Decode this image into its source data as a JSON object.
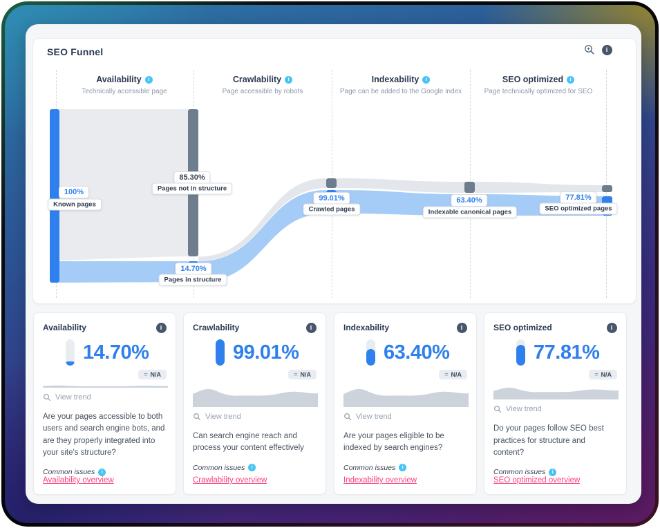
{
  "funnel": {
    "title": "SEO Funnel",
    "columns": [
      {
        "label": "Availability",
        "sublabel": "Technically accessible page"
      },
      {
        "label": "Crawlability",
        "sublabel": "Page accessible by robots"
      },
      {
        "label": "Indexability",
        "sublabel": "Page can be added to the Google index"
      },
      {
        "label": "SEO optimized",
        "sublabel": "Page technically optimized for SEO"
      }
    ],
    "nodes": [
      {
        "pct": "100%",
        "label": "Known pages"
      },
      {
        "pct": "85.30%",
        "label": "Pages not in structure"
      },
      {
        "pct": "14.70%",
        "label": "Pages in structure"
      },
      {
        "pct": "99.01%",
        "label": "Crawled pages"
      },
      {
        "pct": "63.40%",
        "label": "Indexable canonical pages"
      },
      {
        "pct": "77.81%",
        "label": "SEO optimized pages"
      }
    ]
  },
  "chart_data": {
    "type": "area",
    "title": "SEO Funnel",
    "stages": [
      "Known pages",
      "Pages in structure",
      "Crawled pages",
      "Indexable canonical pages",
      "SEO optimized pages"
    ],
    "values_pct_of_previous": [
      100,
      14.7,
      99.01,
      63.4,
      77.81
    ],
    "dropoff": [
      {
        "label": "Pages not in structure",
        "pct": 85.3
      }
    ]
  },
  "cards": [
    {
      "title": "Availability",
      "value": "14.70%",
      "value_pct": 14.7,
      "trend_prefix": "=",
      "trend_value": "N/A",
      "view_trend": "View trend",
      "description": "Are your pages accessible to both users and search engine bots, and are they properly integrated into your site's structure?",
      "common_issues": "Common issues",
      "link": "Availability overview"
    },
    {
      "title": "Crawlability",
      "value": "99.01%",
      "value_pct": 99,
      "trend_prefix": "=",
      "trend_value": "N/A",
      "view_trend": "View trend",
      "description": "Can search engine reach and process your content effectively",
      "common_issues": "Common issues",
      "link": "Crawlability overview"
    },
    {
      "title": "Indexability",
      "value": "63.40%",
      "value_pct": 63.4,
      "trend_prefix": "=",
      "trend_value": "N/A",
      "view_trend": "View trend",
      "description": "Are your pages eligible to be indexed by search engines?",
      "common_issues": "Common issues",
      "link": "Indexability overview"
    },
    {
      "title": "SEO optimized",
      "value": "77.81%",
      "value_pct": 77.8,
      "trend_prefix": "=",
      "trend_value": "N/A",
      "view_trend": "View trend",
      "description": "Do your pages follow SEO best practices for structure and content?",
      "common_issues": "Common issues",
      "link": "SEO optimized overview"
    }
  ],
  "colors": {
    "accent_blue": "#2f80ed",
    "node_blue": "#2e80ee",
    "flow_blue": "#a5cbf7",
    "flow_gray": "#e9ebee",
    "node_gray": "#6e7d8d",
    "link_pink": "#f9407e",
    "info_cyan": "#49c3f1",
    "info_dark": "#47566b"
  }
}
